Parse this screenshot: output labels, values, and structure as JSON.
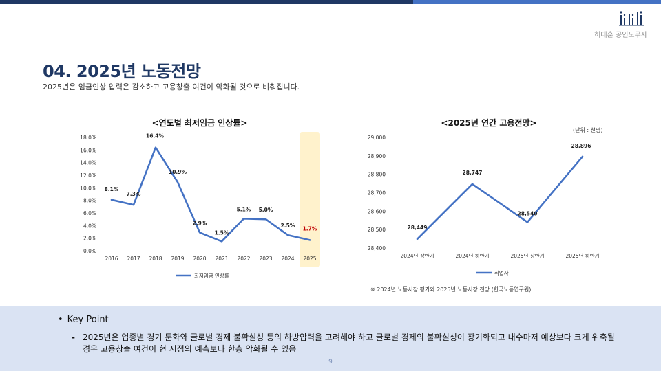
{
  "header": {
    "brand": "허태훈 공인노무사",
    "colors": {
      "dark": "#1f3864",
      "light": "#4472c4"
    }
  },
  "slide": {
    "title": "04. 2025년 노동전망",
    "subtitle": "2025년은 임금인상 압력은 감소하고 고용창출 여건이 악화될 것으로 비춰집니다."
  },
  "chart1": {
    "title": "<연도별 최저임금 인상률>",
    "highlight_color": "#fff2cc"
  },
  "chart2": {
    "title": "<2025년 연간 고용전망>",
    "unit": "(단위 : 천명)",
    "source": "※ 2024년 노동시장 평가와 2025년 노동시장 전망 (한국노동연구원)"
  },
  "chart_data": [
    {
      "type": "line",
      "title": "<연도별 최저임금 인상률>",
      "categories": [
        "2016",
        "2017",
        "2018",
        "2019",
        "2020",
        "2021",
        "2022",
        "2023",
        "2024",
        "2025"
      ],
      "series": [
        {
          "name": "최저임금 인상률",
          "values": [
            8.1,
            7.3,
            16.4,
            10.9,
            2.9,
            1.5,
            5.1,
            5.0,
            2.5,
            1.7
          ],
          "labels": [
            "8.1%",
            "7.3%",
            "16.4%",
            "10.9%",
            "2.9%",
            "1.5%",
            "5.1%",
            "5.0%",
            "2.5%",
            "1.7%"
          ],
          "color": "#4472c4"
        }
      ],
      "ylim": [
        0,
        18
      ],
      "yticks": [
        "0.0%",
        "2.0%",
        "4.0%",
        "6.0%",
        "8.0%",
        "10.0%",
        "12.0%",
        "14.0%",
        "16.0%",
        "18.0%"
      ],
      "highlight_category": "2025",
      "highlight_label_color": "#c00000",
      "legend": "bottom"
    },
    {
      "type": "line",
      "title": "<2025년 연간 고용전망>",
      "categories": [
        "2024년 상반기",
        "2024년 하반기",
        "2025년 상반기",
        "2025년 하반기"
      ],
      "series": [
        {
          "name": "취업자",
          "values": [
            28449,
            28747,
            28540,
            28896
          ],
          "labels": [
            "28,449",
            "28,747",
            "28,540",
            "28,896"
          ],
          "color": "#4472c4"
        }
      ],
      "ylim": [
        28400,
        29000
      ],
      "yticks": [
        "28,400",
        "28,500",
        "28,600",
        "28,700",
        "28,800",
        "28,900",
        "29,000"
      ],
      "legend": "bottom"
    }
  ],
  "key_point": {
    "heading": "Key Point",
    "bullet": "•",
    "dash": "-",
    "text": "2025년은 업종별 경기 둔화와 글로벌 경제 불확실성 등의 하방압력을 고려해야 하고 글로벌 경제의 불확실성이 장기화되고 내수마저 예상보다 크게 위축될 경우 고용창출 여건이 현 시점의 예측보다 한층 악화될 수 있음"
  },
  "page_number": "9"
}
